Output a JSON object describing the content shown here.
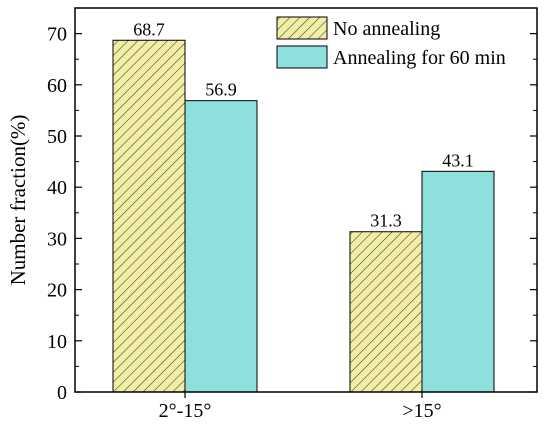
{
  "chart_data": {
    "type": "bar",
    "categories": [
      "2°-15°",
      ">15°"
    ],
    "series": [
      {
        "name": "No annealing",
        "values": [
          68.7,
          31.3
        ],
        "color": "#f2eea6",
        "pattern": "diagonal-hatch"
      },
      {
        "name": "Annealing for 60 min",
        "values": [
          56.9,
          43.1
        ],
        "color": "#8ee0dc",
        "pattern": "solid"
      }
    ],
    "value_labels": [
      [
        "68.7",
        "31.3"
      ],
      [
        "56.9",
        "43.1"
      ]
    ],
    "xlabel": "",
    "ylabel": "Number fraction(%)",
    "ylim": [
      0,
      75
    ],
    "yticks": [
      0,
      10,
      20,
      30,
      40,
      50,
      60,
      70
    ],
    "ytick_labels": [
      "0",
      "10",
      "20",
      "30",
      "40",
      "50",
      "60",
      "70"
    ],
    "legend_position": "top-right",
    "grid": false
  }
}
